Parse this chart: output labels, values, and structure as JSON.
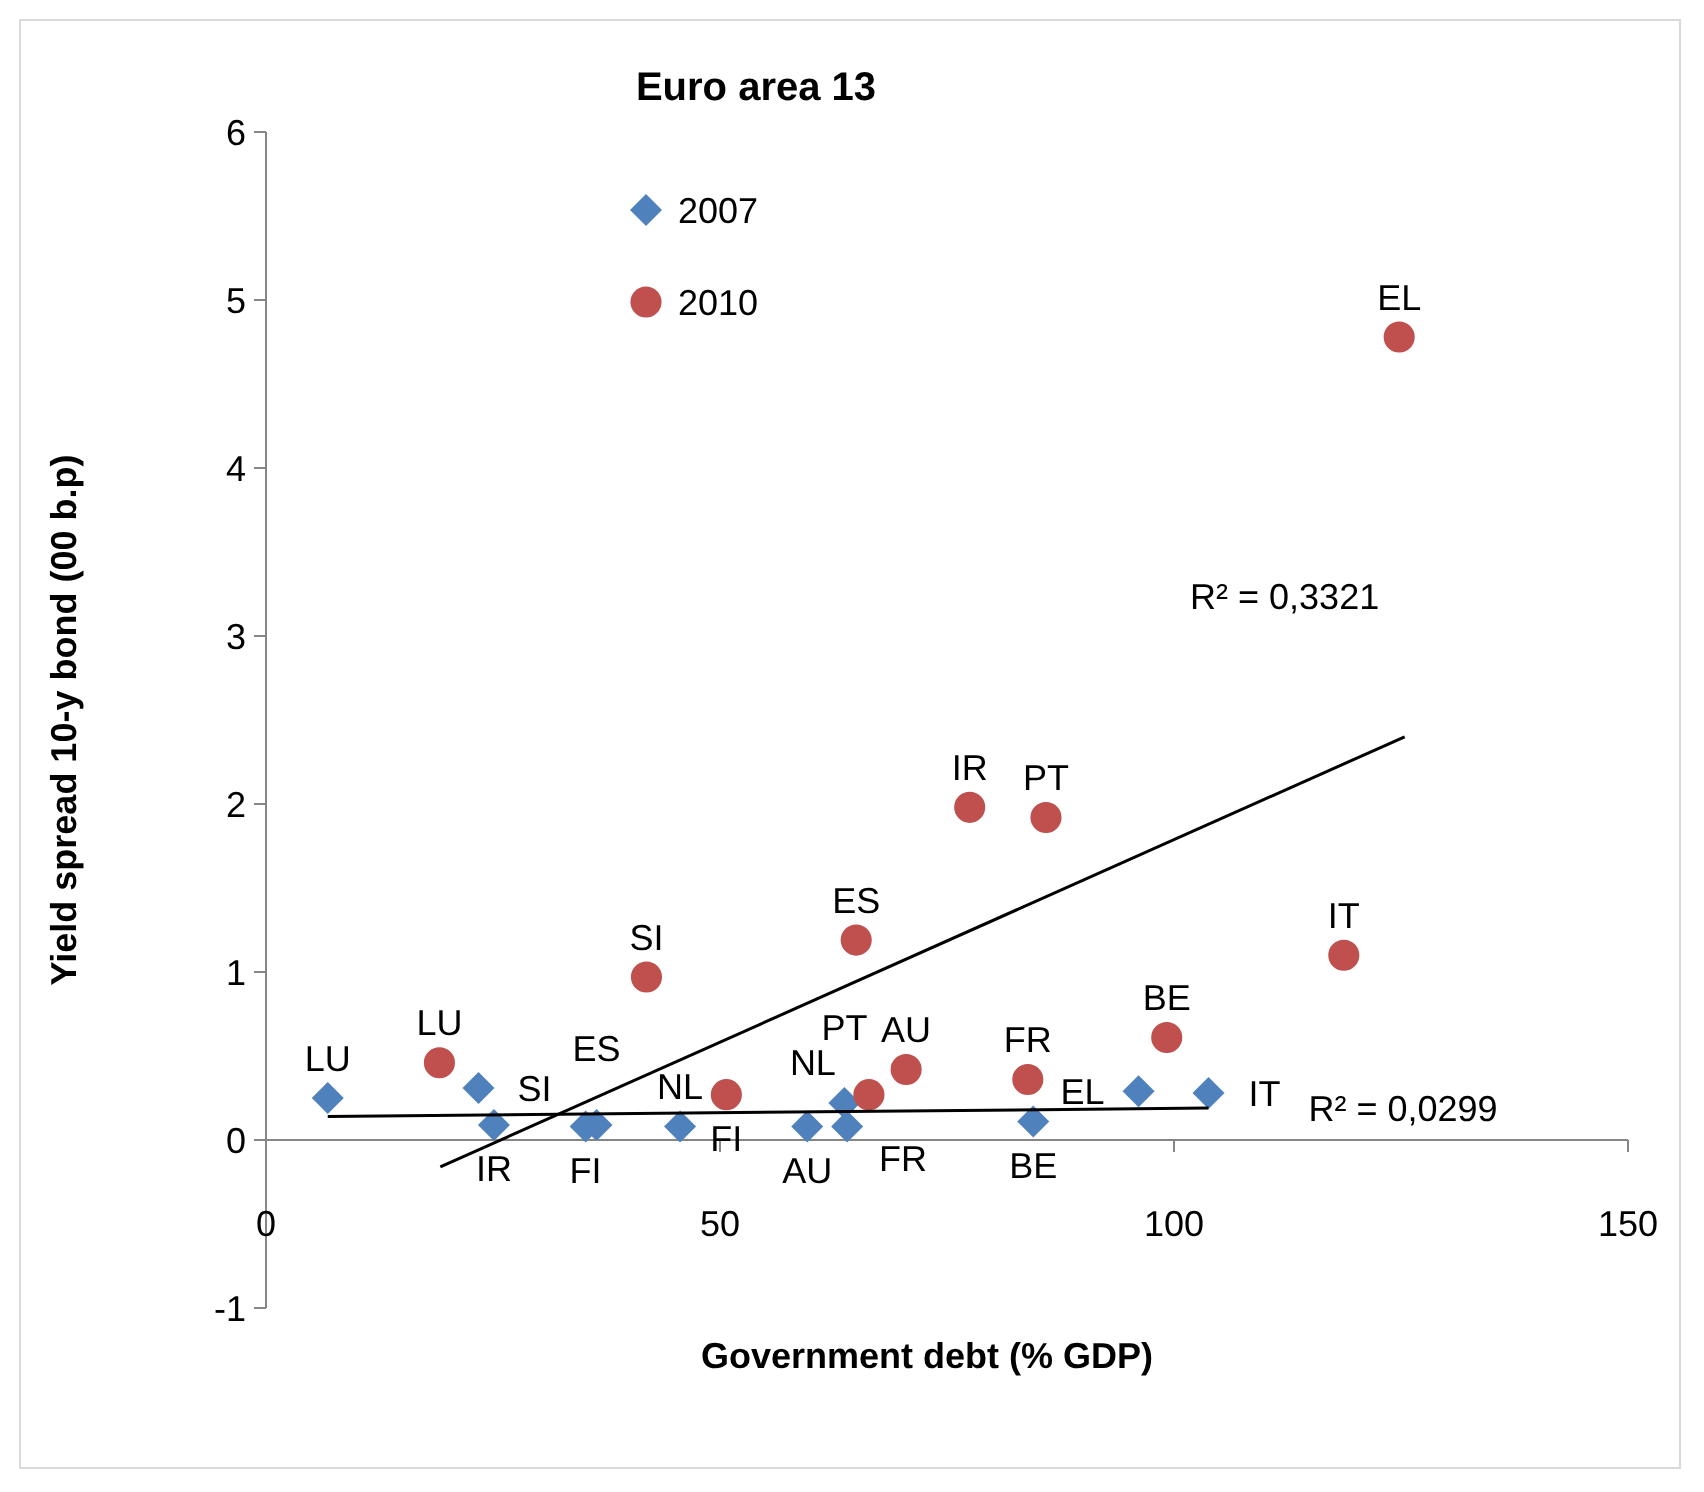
{
  "chart_data": {
    "type": "scatter",
    "title": "Euro area 13",
    "xlabel": "Government debt (% GDP)",
    "ylabel": "Yield spread 10-y bond (00 b.p)",
    "xlim": [
      0,
      150
    ],
    "xticks": [
      0,
      50,
      100,
      150
    ],
    "ylim": [
      -1,
      6
    ],
    "yticks": [
      -1,
      0,
      1,
      2,
      3,
      4,
      5,
      6
    ],
    "grid": false,
    "legend": "top left",
    "series": [
      {
        "name": "2007",
        "color": "#4f81bd",
        "marker": "diamond",
        "x": [
          6.8,
          23.4,
          25.1,
          35.2,
          36.4,
          45.6,
          59.6,
          63.7,
          64.0,
          84.5,
          96.1,
          103.8
        ],
        "values": [
          0.25,
          0.31,
          0.09,
          0.08,
          0.09,
          0.08,
          0.08,
          0.22,
          0.08,
          0.11,
          0.29,
          0.28
        ],
        "value_labels": [
          "LU",
          "SI",
          "IR",
          "FI",
          "ES",
          "NL",
          "AU",
          "PT",
          "FR",
          "BE",
          "EL",
          "IT"
        ]
      },
      {
        "name": "2010",
        "color": "#c0504d",
        "marker": "circle",
        "x": [
          19.1,
          41.9,
          50.7,
          65.0,
          66.4,
          70.5,
          77.5,
          83.9,
          85.9,
          99.2,
          118.7,
          124.8
        ],
        "values": [
          0.46,
          0.97,
          0.27,
          1.19,
          0.27,
          0.42,
          1.98,
          0.36,
          1.92,
          0.61,
          1.1,
          4.78
        ],
        "value_labels": [
          "LU",
          "SI",
          "FI",
          "ES",
          "NL",
          "AU",
          "IR",
          "FR",
          "PT",
          "BE",
          "IT",
          "EL"
        ]
      },
      {
        "type": "line",
        "color": "#000000",
        "marker": "none",
        "x": [
          6.8,
          103.8
        ],
        "values": [
          0.14,
          0.19
        ]
      },
      {
        "type": "line",
        "color": "#000000",
        "marker": "none",
        "x": [
          19.2,
          125.4
        ],
        "values": [
          -0.16,
          2.4
        ]
      }
    ],
    "annotations": [
      "R² = 0,0299",
      "R² = 0,3321"
    ]
  }
}
